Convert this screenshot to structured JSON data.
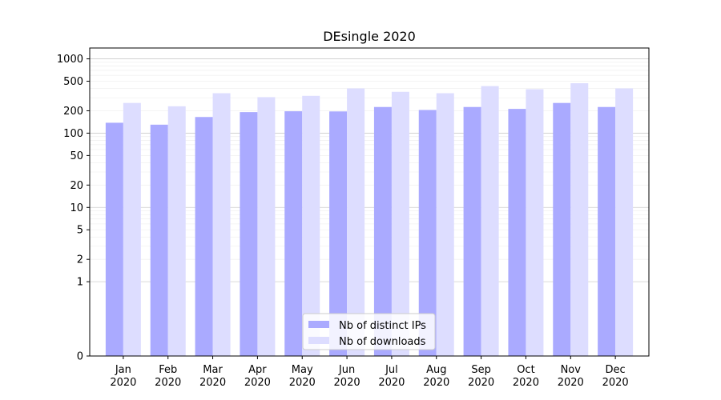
{
  "chart_data": {
    "type": "bar",
    "title": "DEsingle 2020",
    "xlabel": "",
    "ylabel": "",
    "y_scale": "symlog",
    "ylim": [
      0,
      1400
    ],
    "grid": true,
    "legend_position": "bottom-center",
    "categories": [
      "Jan\n2020",
      "Feb\n2020",
      "Mar\n2020",
      "Apr\n2020",
      "May\n2020",
      "Jun\n2020",
      "Jul\n2020",
      "Aug\n2020",
      "Sep\n2020",
      "Oct\n2020",
      "Nov\n2020",
      "Dec\n2020"
    ],
    "y_ticks": [
      0,
      1,
      2,
      5,
      10,
      20,
      50,
      100,
      200,
      500,
      1000
    ],
    "y_tick_labels": [
      "0",
      "1",
      "2",
      "5",
      "10",
      "20",
      "50",
      "100",
      "200",
      "500",
      "1000"
    ],
    "series": [
      {
        "name": "Nb of distinct IPs",
        "color": "#aaaaff",
        "values": [
          138,
          130,
          165,
          192,
          197,
          196,
          225,
          205,
          225,
          212,
          255,
          225
        ]
      },
      {
        "name": "Nb of downloads",
        "color": "#ddddff",
        "values": [
          255,
          230,
          345,
          305,
          318,
          400,
          360,
          345,
          430,
          390,
          470,
          400
        ]
      }
    ]
  }
}
